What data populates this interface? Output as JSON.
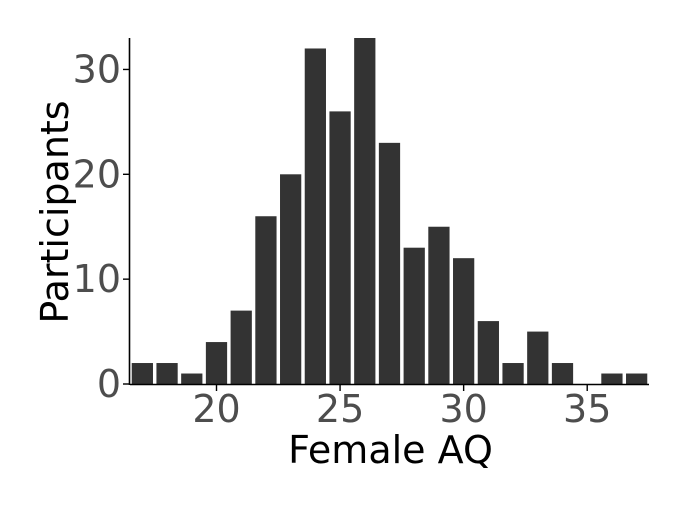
{
  "chart_data": {
    "type": "bar",
    "title": "",
    "xlabel": "Female AQ",
    "ylabel": "Participants",
    "x": [
      17,
      18,
      19,
      20,
      21,
      22,
      23,
      24,
      25,
      26,
      27,
      28,
      29,
      30,
      31,
      32,
      33,
      34,
      35,
      36,
      37
    ],
    "values": [
      2,
      2,
      1,
      4,
      7,
      16,
      20,
      32,
      26,
      33,
      23,
      13,
      15,
      12,
      6,
      2,
      5,
      2,
      0,
      1,
      1
    ],
    "xlim": [
      16.5,
      37.5
    ],
    "ylim": [
      0,
      33
    ],
    "xticks": [
      20,
      25,
      30,
      35
    ],
    "yticks": [
      0,
      10,
      20,
      30
    ],
    "grid": false,
    "legend": "none",
    "bar_color": "#333333",
    "axis_color": "#000000",
    "tick_label_color": "#4d4d4d"
  }
}
